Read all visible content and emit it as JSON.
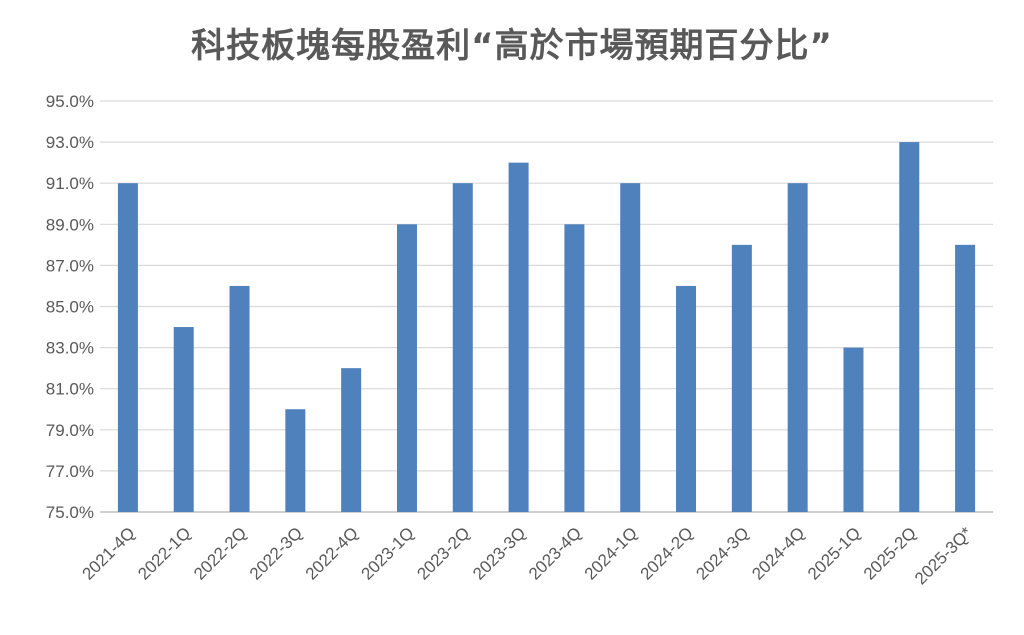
{
  "chart_data": {
    "type": "bar",
    "title": "科技板塊每股盈利“高於市場預期百分比”",
    "xlabel": "",
    "ylabel": "",
    "categories": [
      "2021-4Q",
      "2022-1Q",
      "2022-2Q",
      "2022-3Q",
      "2022-4Q",
      "2023-1Q",
      "2023-2Q",
      "2023-3Q",
      "2023-4Q",
      "2024-1Q",
      "2024-2Q",
      "2024-3Q",
      "2024-4Q",
      "2025-1Q",
      "2025-2Q",
      "2025-3Q*"
    ],
    "values": [
      91,
      84,
      86,
      80,
      82,
      89,
      91,
      92,
      89,
      91,
      86,
      88,
      91,
      83,
      93,
      88
    ],
    "ylim": [
      75,
      95
    ],
    "yticks": [
      "75.0%",
      "77.0%",
      "79.0%",
      "81.0%",
      "83.0%",
      "85.0%",
      "87.0%",
      "89.0%",
      "91.0%",
      "93.0%",
      "95.0%"
    ],
    "grid": true,
    "legend": "none",
    "bar_color": "#4F81BD"
  }
}
